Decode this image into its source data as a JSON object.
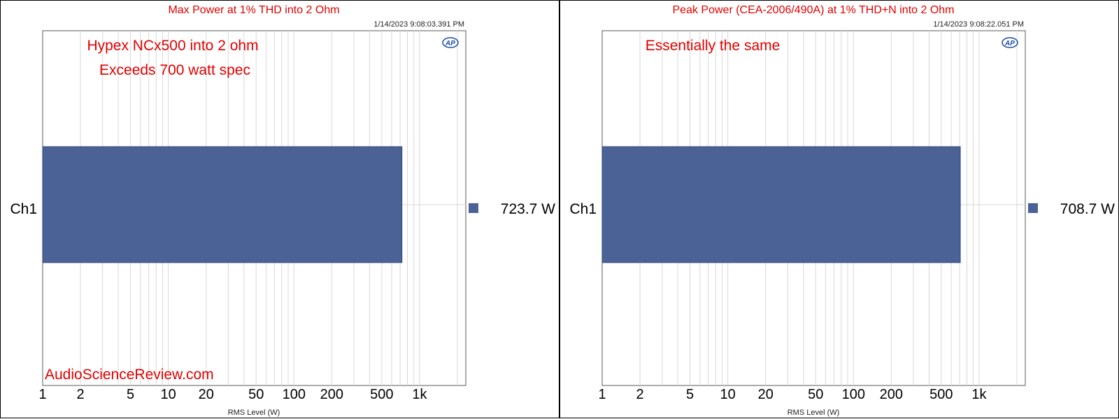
{
  "colors": {
    "bar": "#4a6296",
    "bar_edge": "#2e4577",
    "grid": "#d8d8d8",
    "annotation": "#e00000"
  },
  "logo": {
    "text": "AP",
    "icon": "audio-precision-logo-icon"
  },
  "chart_data": [
    {
      "type": "bar",
      "orientation": "horizontal",
      "title": "Max Power at 1% THD into 2 Ohm",
      "timestamp": "1/14/2023 9:08:03.391 PM",
      "annotations": [
        "Hypex NCx500 into 2 ohm",
        "Exceeds 700 watt spec"
      ],
      "watermark": "AudioScienceReview.com",
      "categories": [
        "Ch1"
      ],
      "values": [
        723.7
      ],
      "value_labels": [
        "723.7  W"
      ],
      "xlabel": "RMS Level (W)",
      "xscale": "log",
      "xlim": [
        1,
        2000
      ],
      "xticks": [
        1,
        2,
        5,
        10,
        20,
        50,
        100,
        200,
        500,
        1000
      ],
      "xtick_labels": [
        "1",
        "2",
        "5",
        "10",
        "20",
        "50",
        "100",
        "200",
        "500",
        "1k"
      ],
      "grid": true,
      "legend": "right"
    },
    {
      "type": "bar",
      "orientation": "horizontal",
      "title": "Peak Power (CEA-2006/490A) at 1% THD+N into 2 Ohm",
      "timestamp": "1/14/2023 9:08:22.051 PM",
      "annotations": [
        "Essentially the same"
      ],
      "categories": [
        "Ch1"
      ],
      "values": [
        708.7
      ],
      "value_labels": [
        "708.7  W"
      ],
      "xlabel": "RMS Level (W)",
      "xscale": "log",
      "xlim": [
        1,
        2000
      ],
      "xticks": [
        1,
        2,
        5,
        10,
        20,
        50,
        100,
        200,
        500,
        1000
      ],
      "xtick_labels": [
        "1",
        "2",
        "5",
        "10",
        "20",
        "50",
        "100",
        "200",
        "500",
        "1k"
      ],
      "grid": true,
      "legend": "right"
    }
  ]
}
